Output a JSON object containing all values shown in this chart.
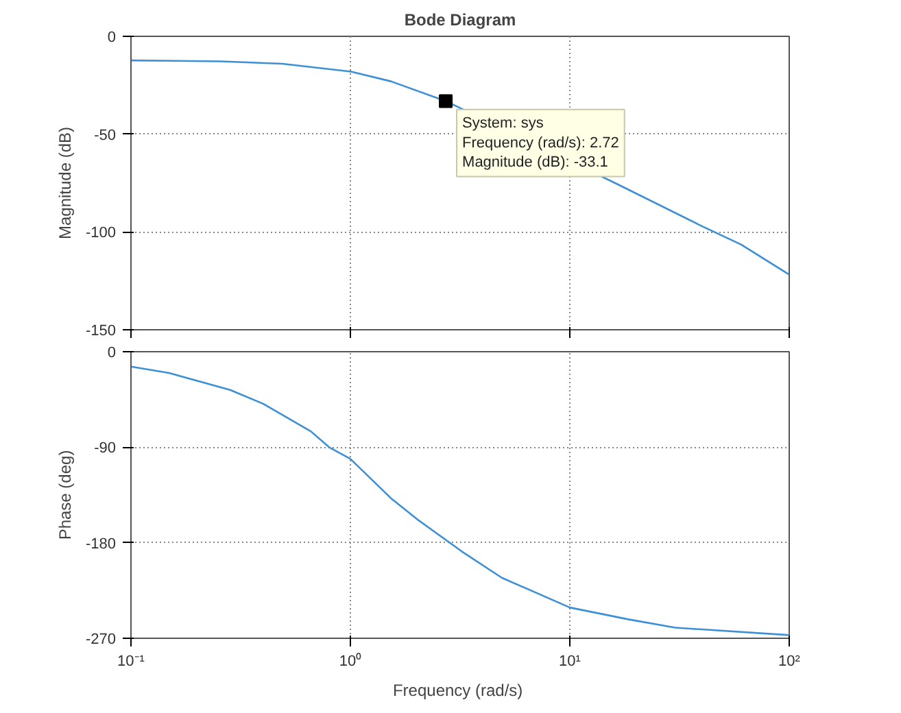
{
  "chart_data": [
    {
      "type": "line",
      "title": "Bode Diagram",
      "ylabel": "Magnitude (dB)",
      "log": "x",
      "grid": true,
      "tick_labels": "y",
      "color": "#3d8fd6",
      "x": [
        0.1,
        0.257,
        0.49,
        1,
        1.53,
        2.72,
        16.5,
        40.6,
        60.3,
        100
      ],
      "values": [
        -12.3,
        -12.8,
        -14,
        -18,
        -23,
        -33.1,
        -75.6,
        -97.4,
        -106.4,
        -121.8
      ],
      "xlim": [
        0.1,
        100
      ],
      "xticks": [
        {
          "value": 0.1,
          "label": null
        },
        {
          "value": 1,
          "label": null
        },
        {
          "value": 10,
          "label": null
        },
        {
          "value": 100,
          "label": null
        }
      ],
      "ylim": [
        -150,
        0
      ],
      "yticks": [
        -150,
        -100,
        -50,
        0
      ],
      "annotations": [
        {
          "text": "System: sys\nFrequency (rad/s): 2.72\nMagnitude (dB): -33.1",
          "x": 2.72,
          "y": -33.1
        }
      ]
    },
    {
      "type": "line",
      "xlabel": "Frequency  (rad/s)",
      "ylabel": "Phase (deg)",
      "log": "x",
      "grid": true,
      "color": "#3d8fd6",
      "x": [
        0.1,
        0.149,
        0.283,
        0.4,
        0.66,
        0.8,
        1,
        1.53,
        2.05,
        3.21,
        4.9,
        10,
        18.3,
        30.2,
        100
      ],
      "values": [
        -14,
        -20,
        -36,
        -49,
        -75,
        -90,
        -101,
        -138,
        -159,
        -188,
        -213,
        -241,
        -252,
        -260,
        -267
      ],
      "xlim": [
        0.1,
        100
      ],
      "xticks": [
        {
          "value": 0.1,
          "label": "10⁻¹"
        },
        {
          "value": 1,
          "label": "10⁰"
        },
        {
          "value": 10,
          "label": "10¹"
        },
        {
          "value": 100,
          "label": "10²"
        }
      ],
      "ylim": [
        -270,
        0
      ],
      "yticks": [
        -270,
        -180,
        -90,
        0
      ]
    }
  ]
}
